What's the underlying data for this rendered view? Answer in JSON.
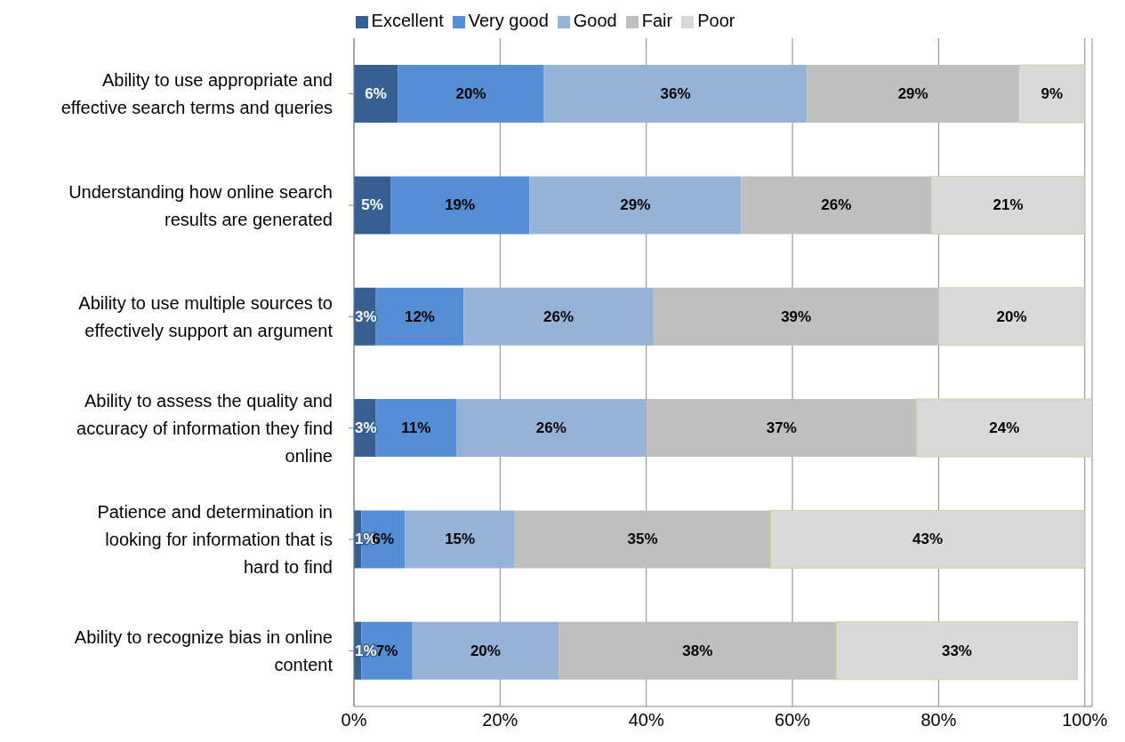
{
  "chart_data": {
    "type": "bar",
    "orientation": "horizontal",
    "stacked": true,
    "categories": [
      "Ability to use appropriate and effective search terms and queries",
      "Understanding how online search results are generated",
      "Ability to use multiple sources to effectively support an argument",
      "Ability to assess the quality and accuracy of information they find online",
      "Patience and determination in looking for information that is hard to find",
      "Ability to recognize bias in online content"
    ],
    "series": [
      {
        "name": "Excellent",
        "color": "#376092",
        "values": [
          6,
          5,
          3,
          3,
          1,
          1
        ],
        "value_labels": [
          "6%",
          "5%",
          "3%",
          "3%",
          "1%",
          "1%"
        ]
      },
      {
        "name": "Very good",
        "color": "#558ed5",
        "values": [
          20,
          19,
          12,
          11,
          6,
          7
        ],
        "value_labels": [
          "20%",
          "19%",
          "12%",
          "11%",
          "6%",
          "7%"
        ]
      },
      {
        "name": "Good",
        "color": "#95b3d7",
        "values": [
          36,
          29,
          26,
          26,
          15,
          20
        ],
        "value_labels": [
          "36%",
          "29%",
          "26%",
          "26%",
          "15%",
          "20%"
        ]
      },
      {
        "name": "Fair",
        "color": "#bfbfbf",
        "values": [
          29,
          26,
          39,
          37,
          35,
          38
        ],
        "value_labels": [
          "29%",
          "26%",
          "39%",
          "37%",
          "35%",
          "38%"
        ]
      },
      {
        "name": "Poor",
        "color": "#d9d9d9",
        "values": [
          9,
          21,
          20,
          24,
          43,
          33
        ],
        "value_labels": [
          "9%",
          "21%",
          "20%",
          "24%",
          "43%",
          "33%"
        ]
      }
    ],
    "xlim": [
      0,
      101
    ],
    "xticks": [
      {
        "value": 0,
        "label": "0%"
      },
      {
        "value": 20,
        "label": "20%"
      },
      {
        "value": 40,
        "label": "40%"
      },
      {
        "value": 60,
        "label": "60%"
      },
      {
        "value": 80,
        "label": "80%"
      },
      {
        "value": 100,
        "label": "100%"
      }
    ],
    "grid": "x",
    "legend": "top"
  }
}
